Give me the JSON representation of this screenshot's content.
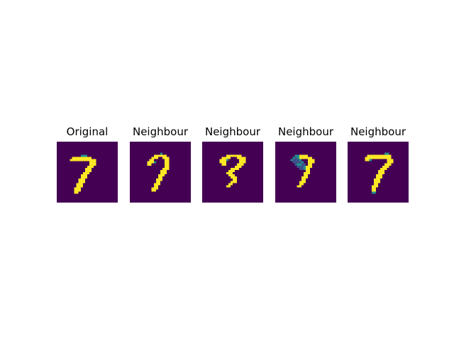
{
  "colors": {
    "background": "#440154",
    "foreground": "#fde725",
    "mid_teal": "#21918c",
    "mid_blue": "#3b528b",
    "mid_green": "#5ec962"
  },
  "panels": [
    {
      "title": "Original",
      "grid": [
        "............................",
        "............................",
        "............................",
        "............................",
        "............................",
        "............................",
        "...........ttt..............",
        ".......#########............",
        "......############..........",
        "...............###..........",
        "...............###..........",
        "..............###...........",
        ".............###............",
        ".............###............",
        "............###.............",
        "...........###..............",
        "...........###..............",
        "..........###...............",
        "..........###...............",
        ".........###................",
        ".........###................",
        "........###.................",
        "........###.................",
        "........##..................",
        "............................",
        "............................",
        "............................",
        "............................"
      ]
    },
    {
      "title": "Neighbour",
      "grid": [
        "............................",
        "............................",
        "............................",
        "............................",
        "............................",
        "..............t.............",
        "...........######...........",
        "..........###..###..........",
        ".........##.....##..........",
        "........###t....##..........",
        "........##......##..........",
        "................##..........",
        "...............###..........",
        "..............###...........",
        "..............###...........",
        ".............###............",
        ".............##.............",
        "............###.............",
        "............##..............",
        "...........###..............",
        "...........##...............",
        "..........###...............",
        "..........##................",
        "............................",
        "............................",
        "............................",
        "............................",
        "............................"
      ]
    },
    {
      "title": "Neighbour",
      "grid": [
        "............................",
        "............................",
        "............................",
        "............................",
        "............................",
        "............................",
        "...........#######..........",
        ".........####...####........",
        "........###t.....###........",
        "........###......###........",
        ".........##.....###.........",
        "...............###..........",
        ".............####...........",
        "............###.............",
        "...........###..............",
        "............###.............",
        ".............###............",
        "..............##............",
        ".............###............",
        "............##..............",
        "...........##...............",
        "............................",
        "............................",
        "............................",
        "............................",
        "............................",
        "............................",
        "............................"
      ]
    },
    {
      "title": "Neighbour",
      "grid": [
        "............................",
        "............................",
        "............................",
        "............................",
        "............................",
        "............................",
        ".........tt####.............",
        "........tbt######...........",
        ".......tbbbt...###..........",
        "........bbbbt..###..........",
        ".........bttbb.##...........",
        "..........bbbt###...........",
        "...........bbt##............",
        "..............##............",
        ".............###............",
        ".............##.............",
        "............###.............",
        "............##..............",
        "...........###..............",
        "...........##...............",
        "..........##................",
        "............................",
        "............................",
        "............................",
        "............................",
        "............................",
        "............................",
        "............................"
      ]
    },
    {
      "title": "Neighbour",
      "grid": [
        "............................",
        "............................",
        "............................",
        "............................",
        "............................",
        ".................tt.........",
        ".........###########........",
        "........############........",
        "........##t.......###.......",
        "..................###.......",
        ".................###........",
        "................###.........",
        "...............###..........",
        "..............###...........",
        "..............###...........",
        ".............###............",
        ".............###............",
        "............###.............",
        "............###.............",
        "............##..............",
        "...........###..............",
        "...........##...............",
        "...........##...............",
        "...........tt...............",
        "............................",
        "............................",
        "............................",
        "............................"
      ]
    }
  ]
}
